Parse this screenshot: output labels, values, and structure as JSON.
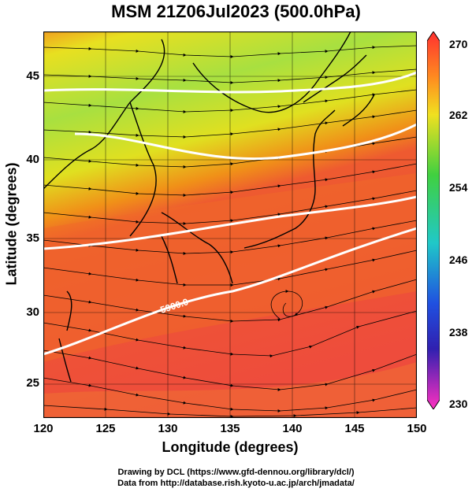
{
  "title": "MSM 21Z06Jul2023 (500.0hPa)",
  "axes": {
    "xlabel": "Longitude (degrees)",
    "ylabel": "Latitude  (degrees)",
    "xticks": [
      "120",
      "125",
      "130",
      "135",
      "140",
      "145",
      "150"
    ],
    "yticks": [
      "45",
      "40",
      "35",
      "30",
      "25"
    ]
  },
  "colorbar": {
    "ticks": [
      "270",
      "262",
      "254",
      "246",
      "238",
      "230"
    ]
  },
  "contour_label": "5900.0",
  "credits": {
    "line1": "Drawing by DCL (https://www.gfd-dennou.org/library/dcl/)",
    "line2": "Data from http://database.rish.kyoto-u.ac.jp/arch/jmadata/"
  },
  "colors": {
    "north": "#e8e020",
    "greenband": "#a0e040",
    "orange": "#f08a18",
    "south": "#ee4c3c",
    "contour": "#ffffff"
  }
}
